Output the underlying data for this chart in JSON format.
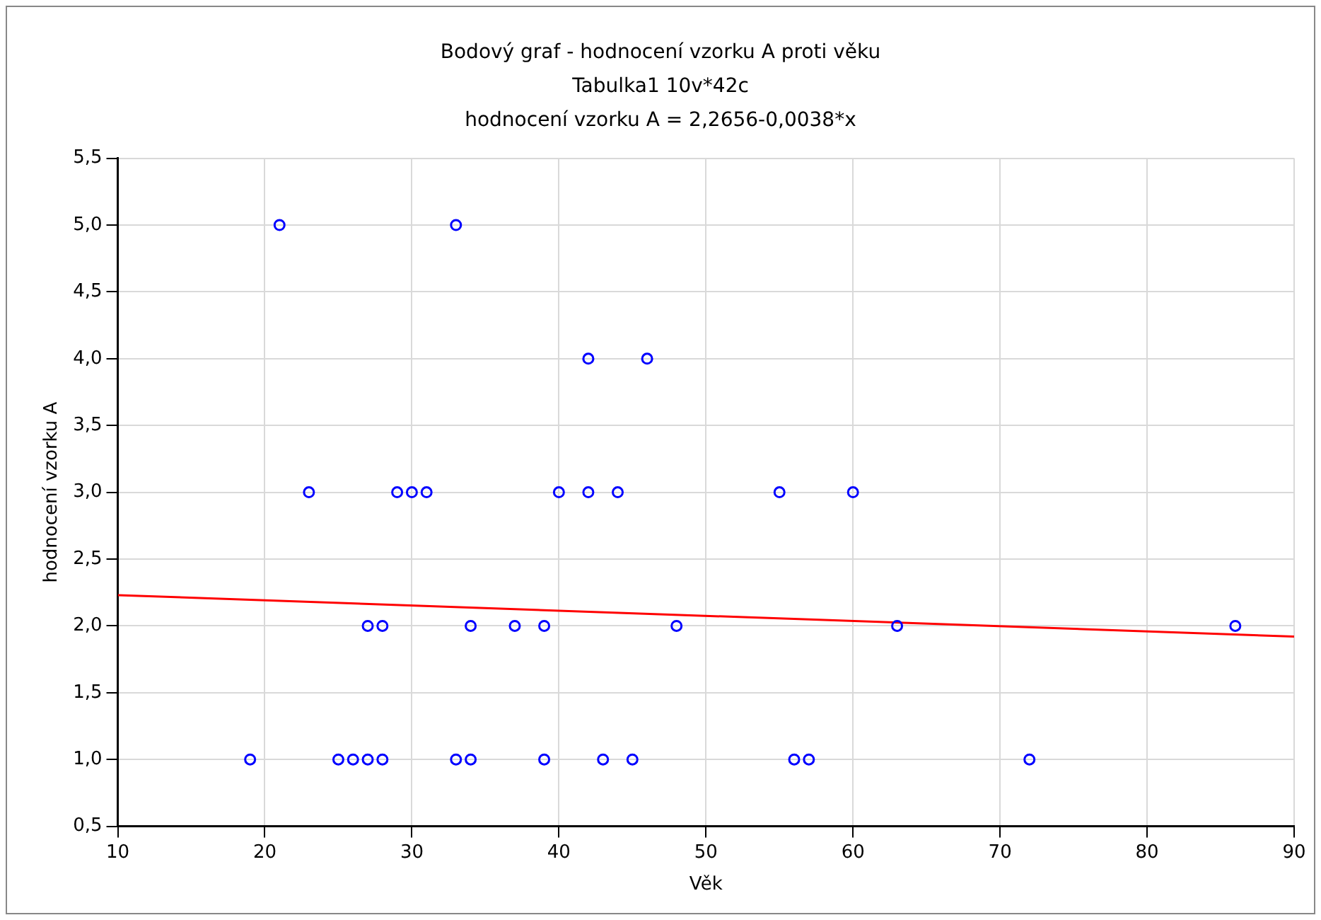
{
  "chart_data": {
    "type": "scatter",
    "title": "Bodový graf - hodnocení vzorku A proti věku",
    "subtitle": "Tabulka1 10v*42c",
    "annotations": [
      "hodnocení vzorku A = 2,2656-0,0038*x"
    ],
    "xlabel": "Věk",
    "ylabel": "hodnocení vzorku A",
    "xlim": [
      10,
      90
    ],
    "xticks": [
      10,
      20,
      30,
      40,
      50,
      60,
      70,
      80,
      90
    ],
    "ylim": [
      0.5,
      5.5
    ],
    "yticks": [
      {
        "value": 0.5,
        "label": "0,5"
      },
      {
        "value": 1,
        "label": "1,0"
      },
      {
        "value": 1.5,
        "label": "1,5"
      },
      {
        "value": 2,
        "label": "2,0"
      },
      {
        "value": 2.5,
        "label": "2,5"
      },
      {
        "value": 3,
        "label": "3,0"
      },
      {
        "value": 3.5,
        "label": "3,5"
      },
      {
        "value": 4,
        "label": "4,0"
      },
      {
        "value": 4.5,
        "label": "4,5"
      },
      {
        "value": 5,
        "label": "5,0"
      },
      {
        "value": 5.5,
        "label": "5,5"
      }
    ],
    "grid": true,
    "legend": false,
    "series": [
      {
        "type": "scatter",
        "marker": "circle",
        "color": "#0000ff",
        "x": [
          21,
          33,
          42,
          46,
          23,
          29,
          30,
          31,
          40,
          42,
          44,
          55,
          60,
          27,
          28,
          34,
          37,
          39,
          48,
          63,
          86,
          19,
          25,
          26,
          27,
          28,
          33,
          34,
          39,
          43,
          45,
          56,
          57,
          72
        ],
        "values": [
          5,
          5,
          4,
          4,
          3,
          3,
          3,
          3,
          3,
          3,
          3,
          3,
          3,
          2,
          2,
          2,
          2,
          2,
          2,
          2,
          2,
          1,
          1,
          1,
          1,
          1,
          1,
          1,
          1,
          1,
          1,
          1,
          1,
          1
        ]
      },
      {
        "type": "line",
        "marker": "none",
        "color": "#ff0000",
        "line_style": "solid",
        "x": [
          10,
          90
        ],
        "values": [
          2.23,
          1.92
        ]
      }
    ]
  }
}
